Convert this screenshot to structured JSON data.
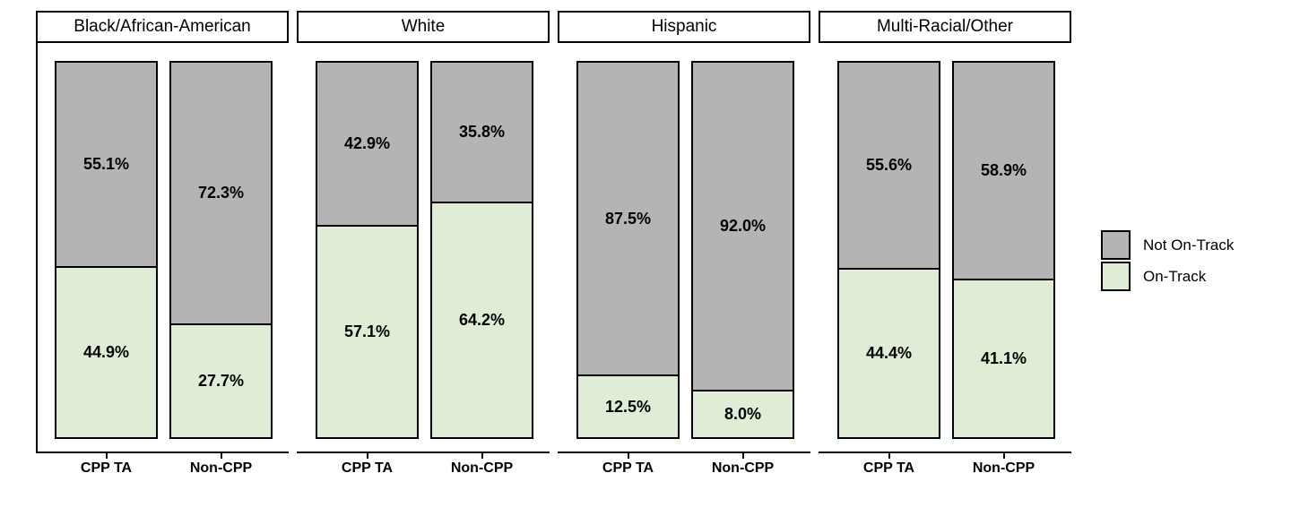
{
  "figure": {
    "background": "#FFFFFF",
    "legend": {
      "position": "right",
      "entries": [
        {
          "label": "Not On-Track",
          "color": "#B4B4B4"
        },
        {
          "label": "On-Track",
          "color": "#DFEDD6"
        }
      ]
    }
  },
  "chart_data": {
    "type": "bar",
    "variant": "stacked-percent-faceted",
    "categories": [
      "CPP TA",
      "Non-CPP"
    ],
    "series_names": [
      "Not On-Track",
      "On-Track"
    ],
    "facets": [
      {
        "label": "Black/African-American",
        "series": [
          {
            "name": "Not On-Track",
            "values": [
              55.1,
              72.3
            ]
          },
          {
            "name": "On-Track",
            "values": [
              44.9,
              27.7
            ]
          }
        ]
      },
      {
        "label": "White",
        "series": [
          {
            "name": "Not On-Track",
            "values": [
              42.9,
              35.8
            ]
          },
          {
            "name": "On-Track",
            "values": [
              57.1,
              64.2
            ]
          }
        ]
      },
      {
        "label": "Hispanic",
        "series": [
          {
            "name": "Not On-Track",
            "values": [
              87.5,
              92.0
            ]
          },
          {
            "name": "On-Track",
            "values": [
              12.5,
              8.0
            ]
          }
        ]
      },
      {
        "label": "Multi-Racial/Other",
        "series": [
          {
            "name": "Not On-Track",
            "values": [
              55.6,
              58.9
            ]
          },
          {
            "name": "On-Track",
            "values": [
              44.4,
              41.1
            ]
          }
        ]
      }
    ],
    "colors": {
      "Not On-Track": "#B4B4B4",
      "On-Track": "#DFEDD6"
    },
    "value_label_format": "{value:.1f}%",
    "ylim": [
      0,
      100
    ],
    "grid": false,
    "legend_position": "right"
  }
}
